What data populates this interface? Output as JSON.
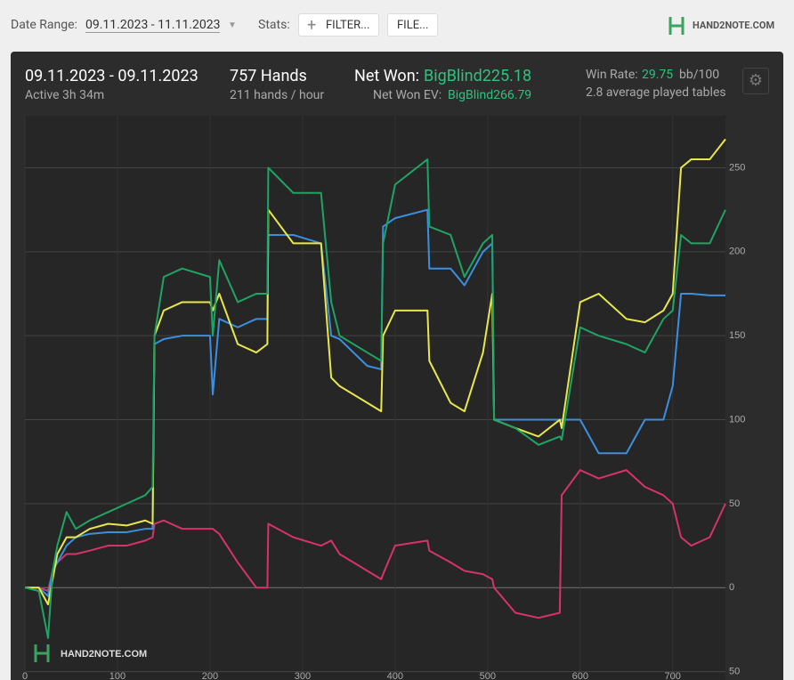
{
  "header": {
    "date_range_label": "Date Range:",
    "date_range": "09.11.2023 - 11.11.2023",
    "stats_label": "Stats:",
    "filter_button": "FILTER...",
    "file_button": "FILE...",
    "logo": "HAND2NOTE.COM"
  },
  "summary": {
    "period": "09.11.2023 - 09.11.2023",
    "active": "Active 3h 34m",
    "hands": "757 Hands",
    "hands_per_hour": "211 hands / hour",
    "net_won_label": "Net Won:",
    "net_won": "BigBlind225.18",
    "net_won_ev_label": "Net Won  EV:",
    "net_won_ev": "BigBlind266.79",
    "win_rate_label": "Win Rate:",
    "win_rate": "29.75",
    "win_rate_unit": "bb/100",
    "tables": "2.8 average played tables"
  },
  "chart_data": {
    "type": "line",
    "watermark": "HAND2NOTE.COM",
    "x": [
      0,
      15,
      25,
      30,
      35,
      45,
      55,
      70,
      90,
      110,
      130,
      138,
      140,
      150,
      170,
      200,
      203,
      210,
      230,
      250,
      262,
      263,
      290,
      320,
      331,
      340,
      370,
      385,
      387,
      400,
      435,
      437,
      460,
      475,
      495,
      505,
      507,
      530,
      555,
      578,
      580,
      600,
      620,
      650,
      670,
      690,
      700,
      709,
      720,
      740,
      757
    ],
    "series": [
      {
        "color": "#d6336c",
        "values": [
          0,
          0,
          -2,
          10,
          15,
          20,
          20,
          22,
          25,
          25,
          28,
          30,
          38,
          40,
          35,
          35,
          35,
          32,
          15,
          0,
          0,
          38,
          30,
          25,
          28,
          20,
          10,
          5,
          8,
          25,
          28,
          22,
          15,
          10,
          8,
          5,
          0,
          -15,
          -18,
          -15,
          55,
          70,
          65,
          70,
          60,
          55,
          50,
          30,
          25,
          30,
          50
        ]
      },
      {
        "color": "#3b8fe0",
        "values": [
          0,
          0,
          -5,
          10,
          15,
          25,
          30,
          32,
          33,
          33,
          35,
          35,
          145,
          148,
          150,
          150,
          115,
          160,
          155,
          160,
          160,
          210,
          210,
          205,
          150,
          148,
          132,
          130,
          215,
          220,
          225,
          190,
          190,
          180,
          200,
          205,
          100,
          100,
          100,
          100,
          100,
          100,
          80,
          80,
          100,
          100,
          120,
          175,
          175,
          174,
          174
        ]
      },
      {
        "color": "#e8e84a",
        "values": [
          0,
          0,
          -10,
          5,
          20,
          30,
          30,
          35,
          38,
          37,
          40,
          38,
          150,
          165,
          170,
          170,
          165,
          175,
          145,
          140,
          145,
          225,
          205,
          205,
          125,
          120,
          110,
          105,
          150,
          165,
          165,
          135,
          110,
          105,
          140,
          175,
          100,
          95,
          90,
          100,
          95,
          170,
          175,
          160,
          158,
          165,
          175,
          250,
          255,
          255,
          267
        ]
      },
      {
        "color": "#1fa463",
        "values": [
          0,
          -2,
          -30,
          10,
          25,
          45,
          35,
          40,
          45,
          50,
          55,
          60,
          150,
          185,
          190,
          185,
          150,
          195,
          170,
          175,
          175,
          250,
          235,
          235,
          170,
          150,
          140,
          135,
          205,
          240,
          255,
          215,
          210,
          185,
          205,
          210,
          100,
          95,
          85,
          90,
          88,
          155,
          150,
          145,
          140,
          160,
          165,
          210,
          205,
          205,
          225
        ]
      }
    ],
    "xlim": [
      0,
      757
    ],
    "ylim": [
      -55,
      281
    ],
    "xticks": [
      0,
      100,
      200,
      300,
      400,
      500,
      600,
      700
    ],
    "yticks": [
      {
        "value": -50,
        "label": "50"
      },
      0,
      50,
      100,
      150,
      200,
      250
    ],
    "grid": true
  }
}
